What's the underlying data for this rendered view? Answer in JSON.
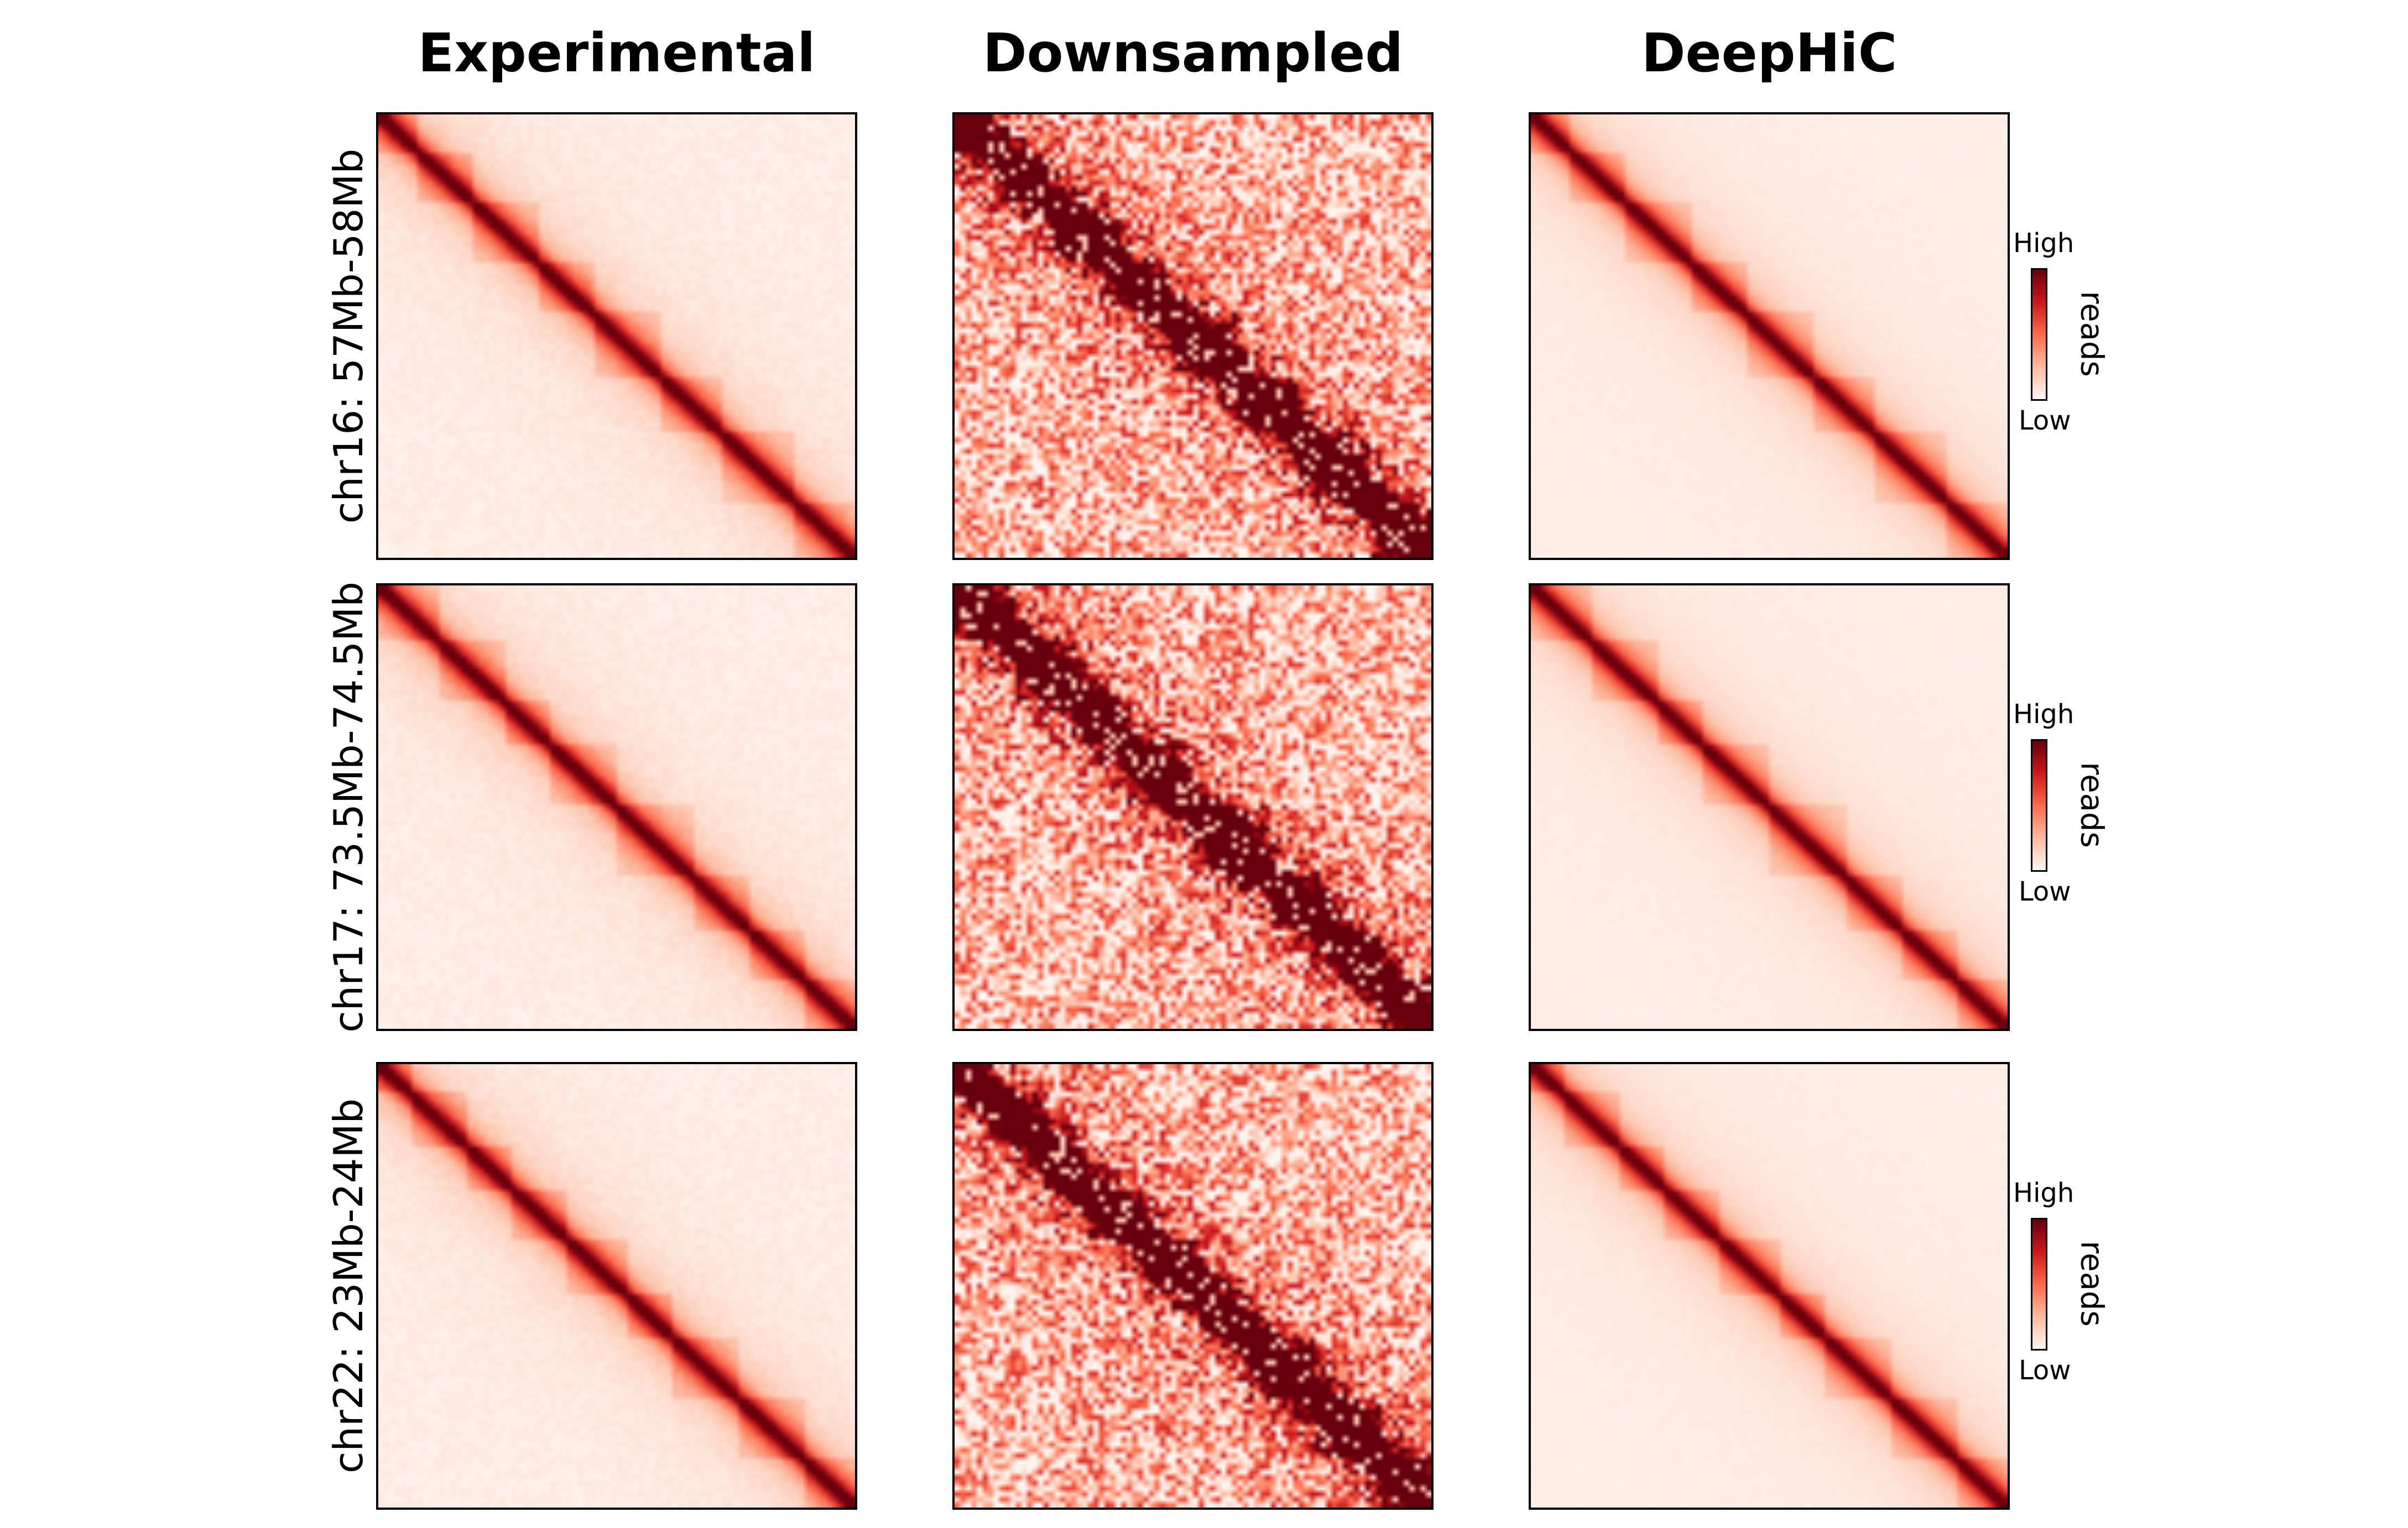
{
  "chart_data": {
    "type": "heatmap",
    "columns": [
      "Experimental",
      "Downsampled",
      "DeepHiC"
    ],
    "rows": [
      "chr16: 57Mb-58Mb",
      "chr17: 73.5Mb-74.5Mb",
      "chr22: 23Mb-24Mb"
    ],
    "colorbar": {
      "label": "reads",
      "high": "High",
      "low": "Low"
    },
    "colormap": [
      "#fff5f0",
      "#fcbba1",
      "#fb6a4a",
      "#cb181d",
      "#67000d"
    ],
    "grid": false
  }
}
